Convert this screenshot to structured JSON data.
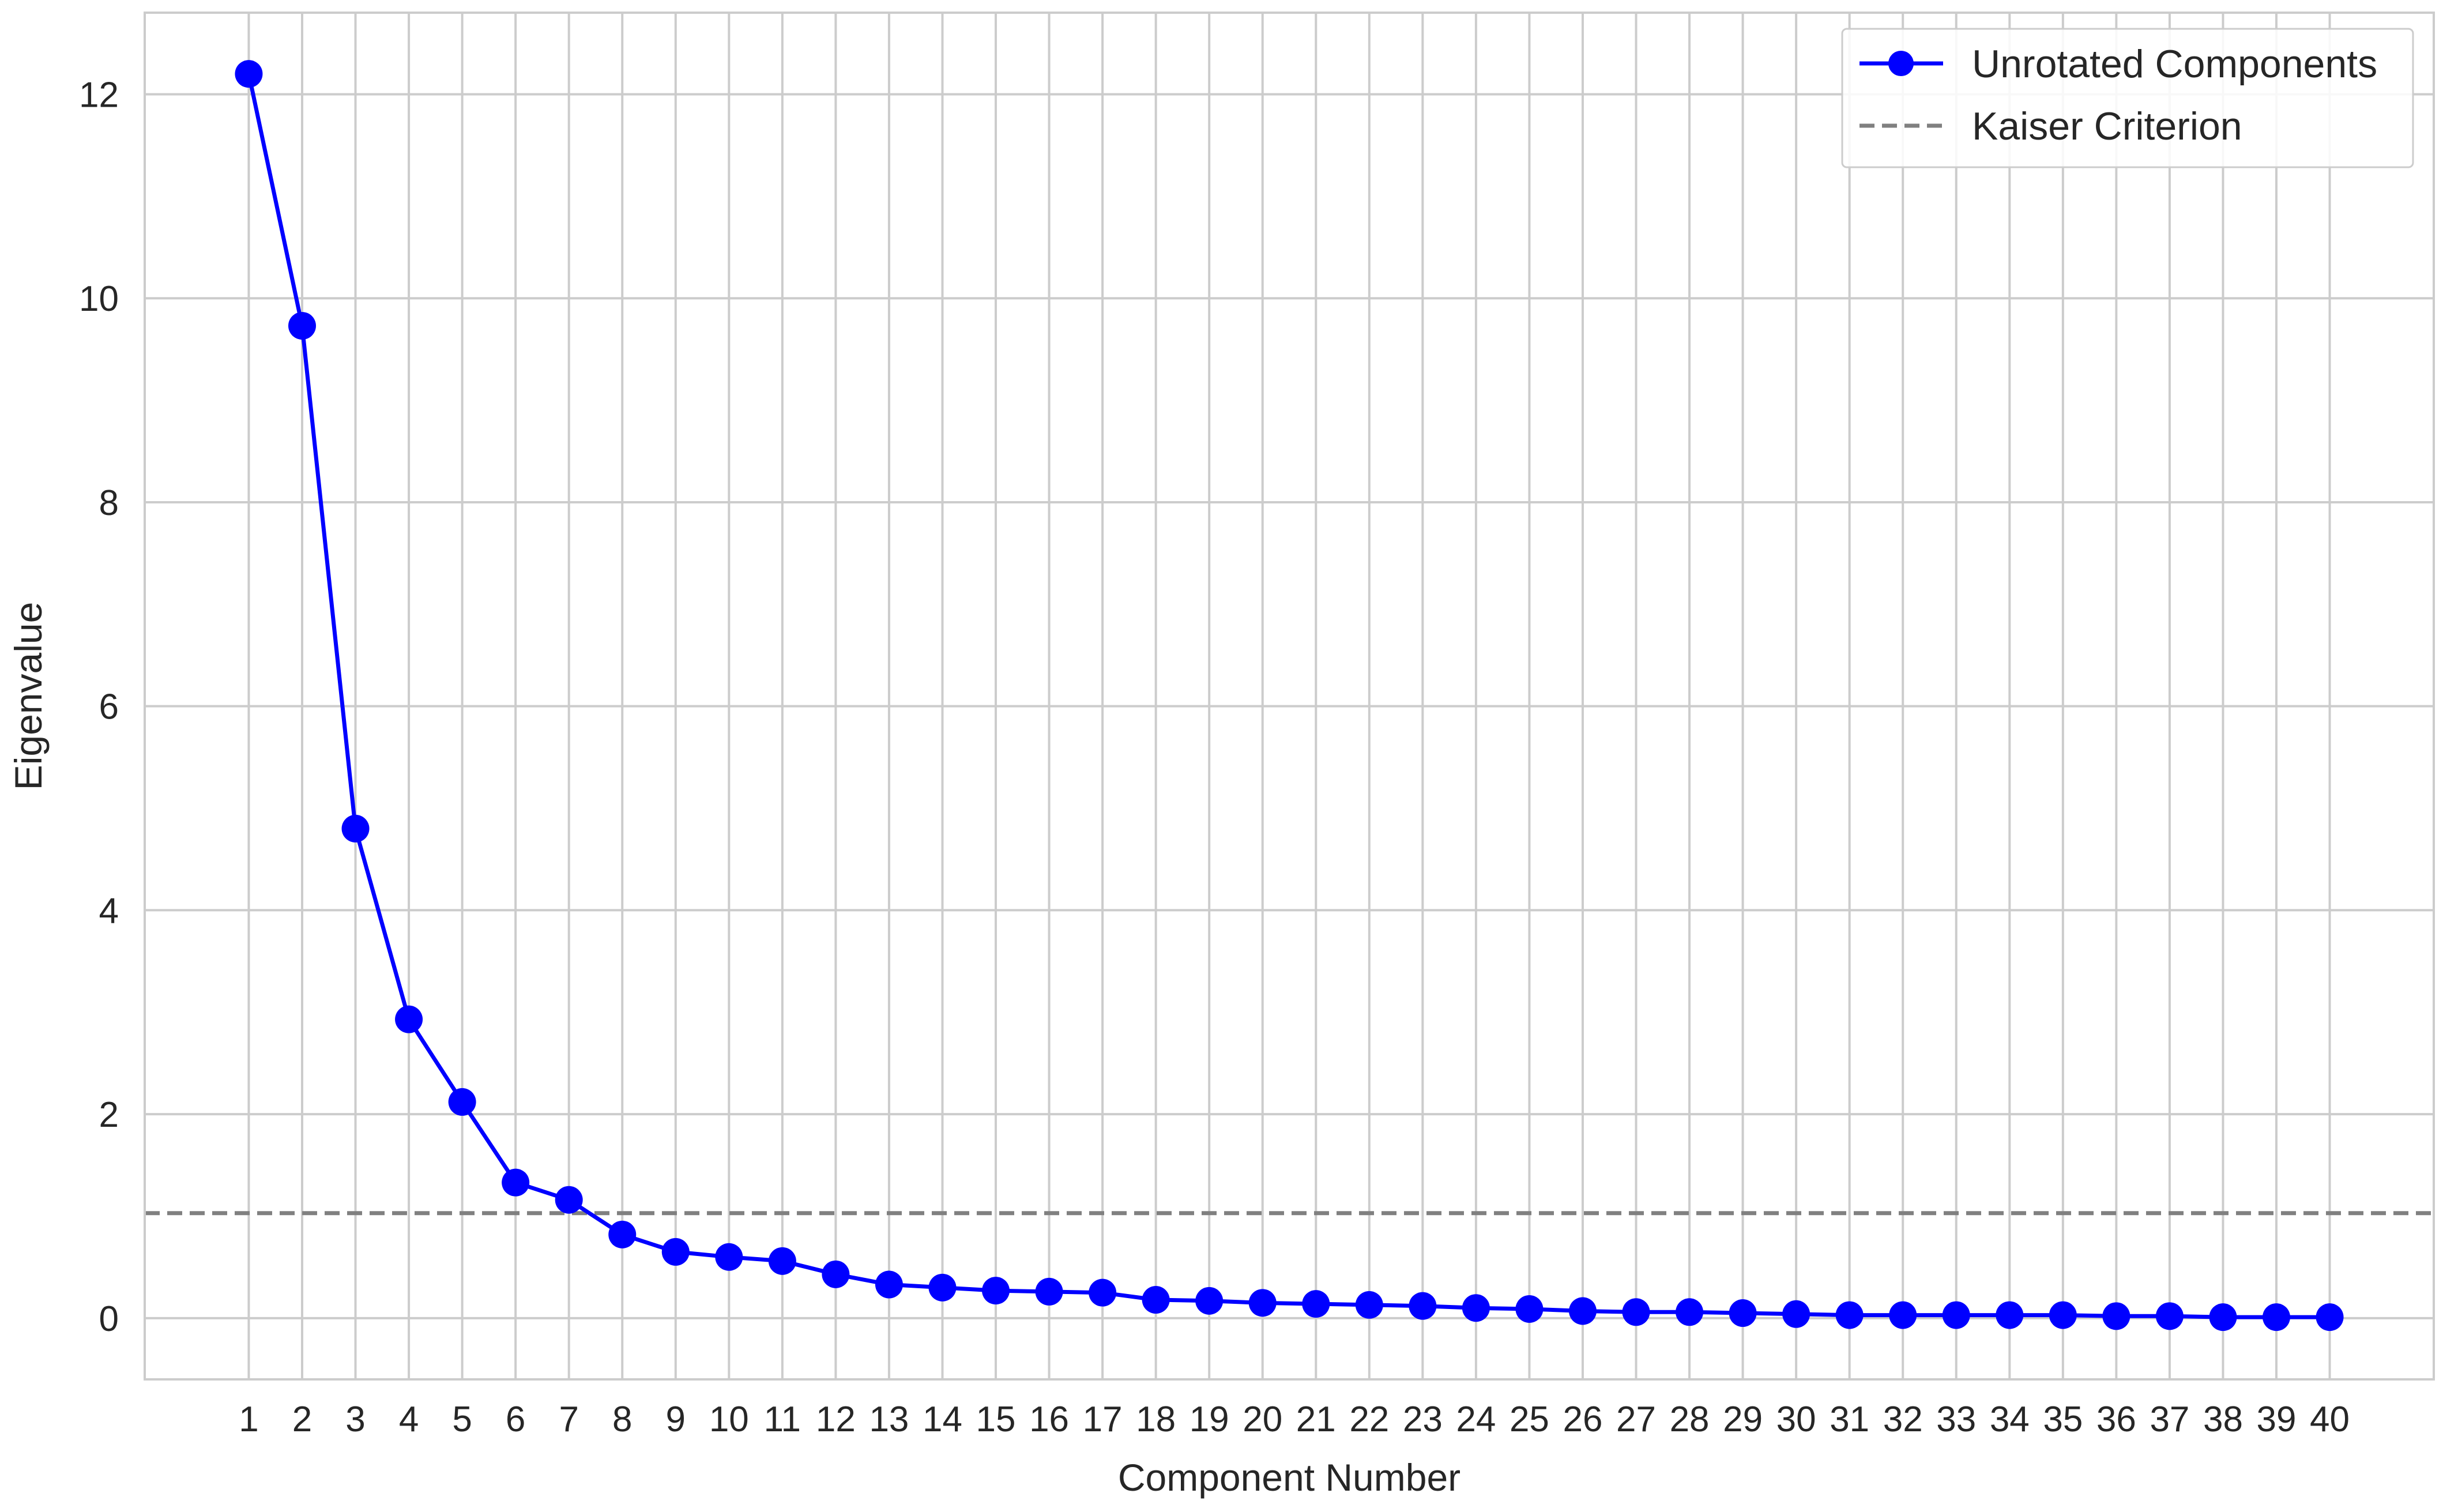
{
  "chart_data": {
    "type": "line",
    "title": "",
    "xlabel": "Component Number",
    "ylabel": "Eigenvalue",
    "x": [
      1,
      2,
      3,
      4,
      5,
      6,
      7,
      8,
      9,
      10,
      11,
      12,
      13,
      14,
      15,
      16,
      17,
      18,
      19,
      20,
      21,
      22,
      23,
      24,
      25,
      26,
      27,
      28,
      29,
      30,
      31,
      32,
      33,
      34,
      35,
      36,
      37,
      38,
      39,
      40
    ],
    "xlim": [
      -0.95,
      41.95
    ],
    "ylim": [
      -0.6,
      12.8
    ],
    "yticks": [
      0,
      2,
      4,
      6,
      8,
      10,
      12
    ],
    "grid": true,
    "legend_position": "top-right",
    "series": [
      {
        "name": "Unrotated Components",
        "color": "#0000ff",
        "marker": "circle",
        "values": [
          12.2,
          9.73,
          4.8,
          2.93,
          2.12,
          1.33,
          1.16,
          0.82,
          0.65,
          0.6,
          0.56,
          0.43,
          0.33,
          0.3,
          0.27,
          0.26,
          0.25,
          0.18,
          0.17,
          0.15,
          0.14,
          0.13,
          0.12,
          0.1,
          0.09,
          0.07,
          0.06,
          0.06,
          0.05,
          0.04,
          0.03,
          0.03,
          0.03,
          0.03,
          0.03,
          0.02,
          0.02,
          0.01,
          0.01,
          0.01
        ]
      }
    ],
    "reference_lines": [
      {
        "name": "Kaiser Criterion",
        "y": 1.03,
        "color": "#808080",
        "style": "dashed"
      }
    ]
  }
}
